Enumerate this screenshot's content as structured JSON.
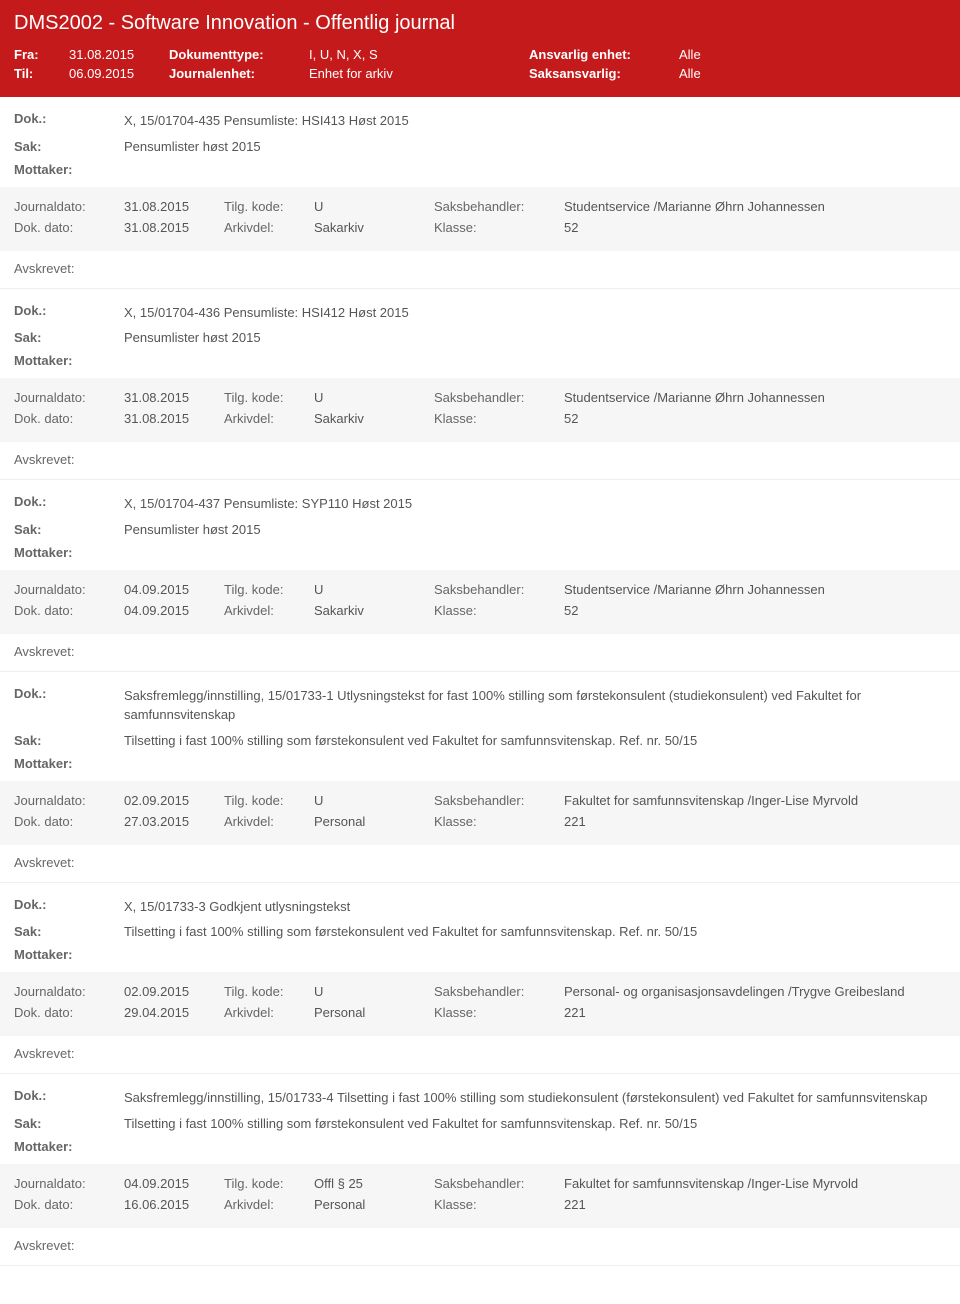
{
  "header": {
    "title": "DMS2002 - Software Innovation - Offentlig journal",
    "fra_lbl": "Fra:",
    "fra_val": "31.08.2015",
    "til_lbl": "Til:",
    "til_val": "06.09.2015",
    "doktype_lbl": "Dokumenttype:",
    "doktype_val": "I, U, N, X, S",
    "journalenhet_lbl": "Journalenhet:",
    "journalenhet_val": "Enhet for arkiv",
    "ansvarlig_lbl": "Ansvarlig enhet:",
    "ansvarlig_val": "Alle",
    "saksansvarlig_lbl": "Saksansvarlig:",
    "saksansvarlig_val": "Alle"
  },
  "labels": {
    "dok": "Dok.:",
    "sak": "Sak:",
    "mottaker": "Mottaker:",
    "journaldato": "Journaldato:",
    "dokdato": "Dok. dato:",
    "tilgkode": "Tilg. kode:",
    "arkivdel": "Arkivdel:",
    "saksbehandler": "Saksbehandler:",
    "klasse": "Klasse:",
    "avskrevet": "Avskrevet:"
  },
  "entries": [
    {
      "dok": "X, 15/01704-435 Pensumliste: HSI413 Høst 2015",
      "sak": "Pensumlister høst 2015",
      "journaldato": "31.08.2015",
      "tilgkode": "U",
      "saksbehandler": "Studentservice /Marianne Øhrn Johannessen",
      "dokdato": "31.08.2015",
      "arkivdel": "Sakarkiv",
      "klasse": "52"
    },
    {
      "dok": "X, 15/01704-436 Pensumliste: HSI412 Høst 2015",
      "sak": "Pensumlister høst 2015",
      "journaldato": "31.08.2015",
      "tilgkode": "U",
      "saksbehandler": "Studentservice /Marianne Øhrn Johannessen",
      "dokdato": "31.08.2015",
      "arkivdel": "Sakarkiv",
      "klasse": "52"
    },
    {
      "dok": "X, 15/01704-437 Pensumliste: SYP110 Høst 2015",
      "sak": "Pensumlister høst 2015",
      "journaldato": "04.09.2015",
      "tilgkode": "U",
      "saksbehandler": "Studentservice /Marianne Øhrn Johannessen",
      "dokdato": "04.09.2015",
      "arkivdel": "Sakarkiv",
      "klasse": "52"
    },
    {
      "dok": "Saksfremlegg/innstilling, 15/01733-1 Utlysningstekst for fast 100% stilling som førstekonsulent (studiekonsulent) ved Fakultet for samfunnsvitenskap",
      "sak": "Tilsetting i fast 100% stilling som førstekonsulent ved Fakultet for samfunnsvitenskap. Ref. nr. 50/15",
      "journaldato": "02.09.2015",
      "tilgkode": "U",
      "saksbehandler": "Fakultet for samfunnsvitenskap /Inger-Lise Myrvold",
      "dokdato": "27.03.2015",
      "arkivdel": "Personal",
      "klasse": "221"
    },
    {
      "dok": "X, 15/01733-3 Godkjent utlysningstekst",
      "sak": "Tilsetting i fast 100% stilling som førstekonsulent ved Fakultet for samfunnsvitenskap. Ref. nr. 50/15",
      "journaldato": "02.09.2015",
      "tilgkode": "U",
      "saksbehandler": "Personal- og organisasjonsavdelingen /Trygve Greibesland",
      "dokdato": "29.04.2015",
      "arkivdel": "Personal",
      "klasse": "221"
    },
    {
      "dok": "Saksfremlegg/innstilling, 15/01733-4 Tilsetting i fast 100% stilling som studiekonsulent (førstekonsulent) ved Fakultet for samfunnsvitenskap",
      "sak": "Tilsetting i fast 100% stilling som førstekonsulent ved Fakultet for samfunnsvitenskap. Ref. nr. 50/15",
      "journaldato": "04.09.2015",
      "tilgkode": "Offl § 25",
      "saksbehandler": "Fakultet for samfunnsvitenskap /Inger-Lise Myrvold",
      "dokdato": "16.06.2015",
      "arkivdel": "Personal",
      "klasse": "221"
    }
  ]
}
